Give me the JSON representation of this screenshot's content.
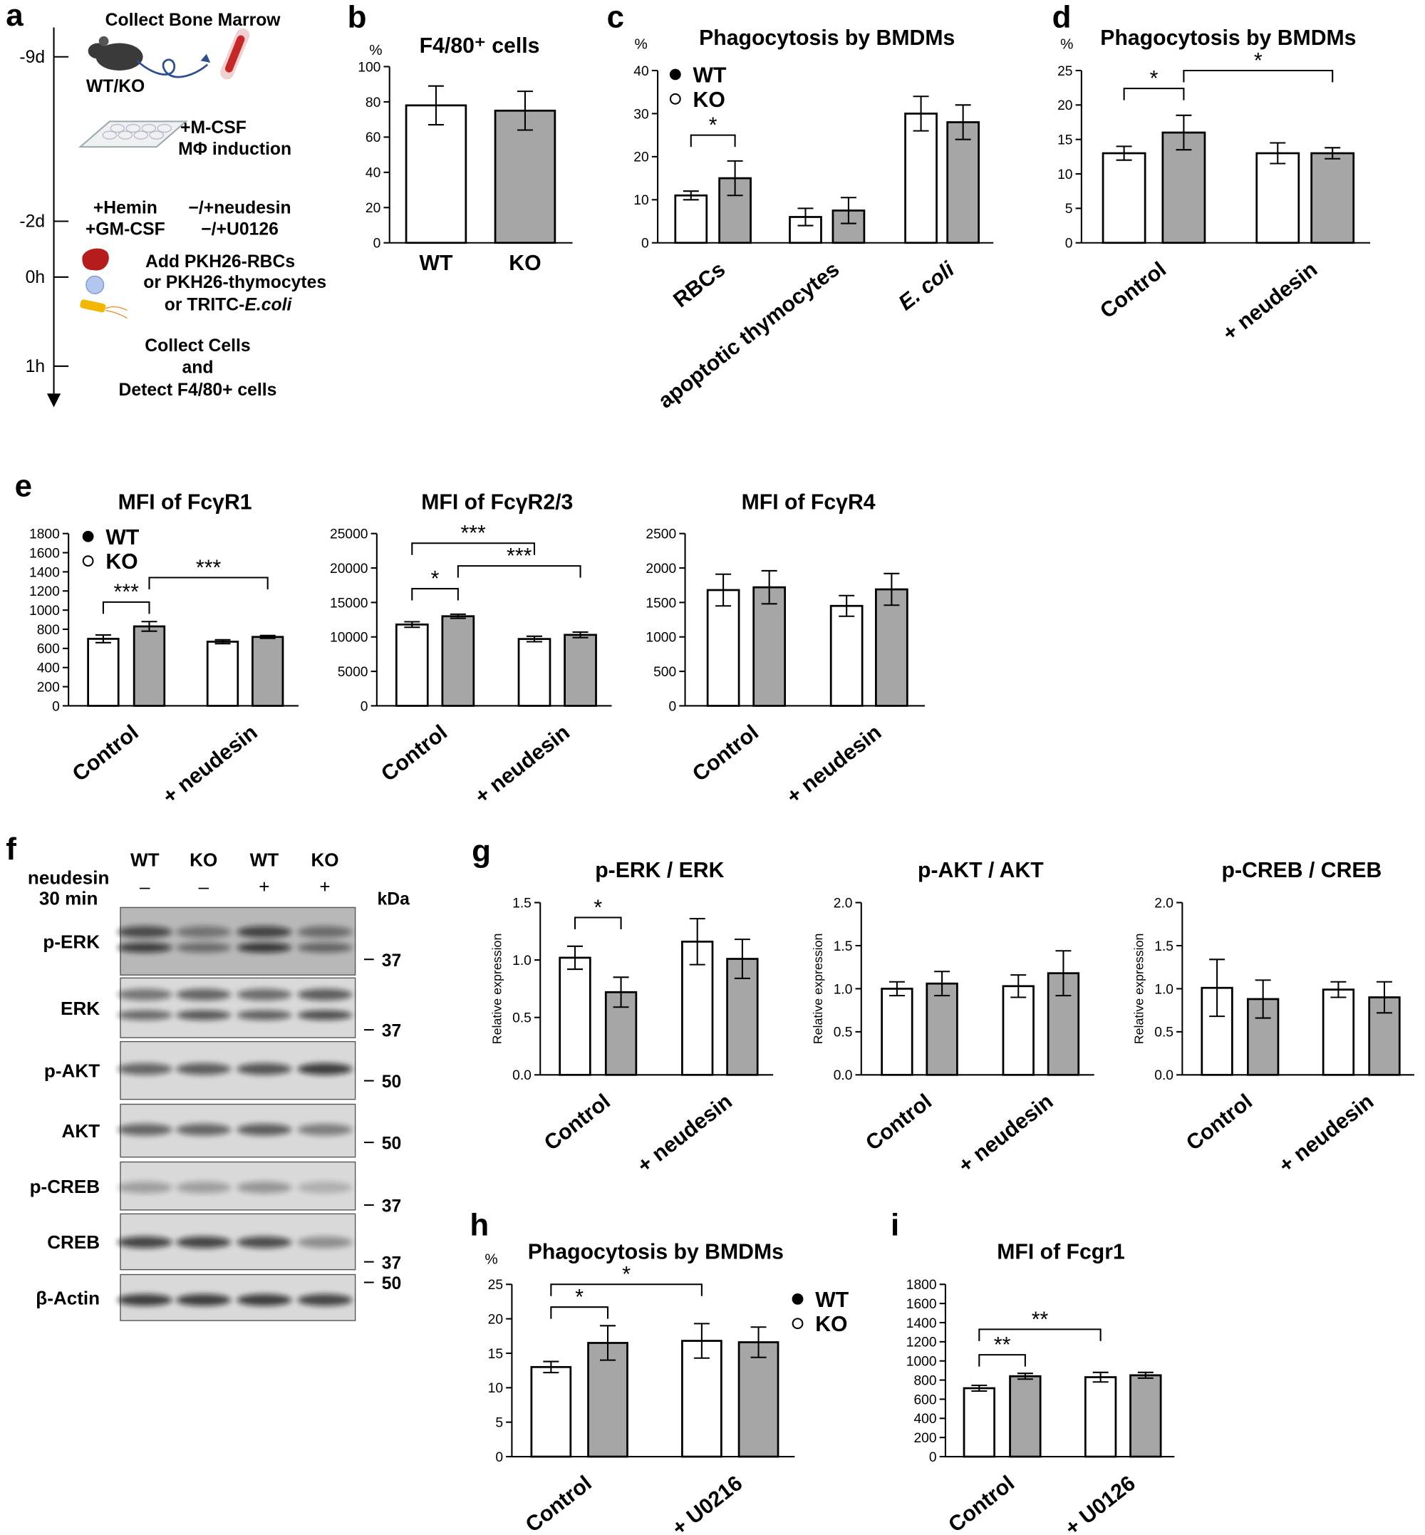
{
  "schematic": {
    "panel": "a",
    "times": [
      "-9d",
      "-2d",
      "0h",
      "1h"
    ],
    "collect": "Collect Bone Marrow",
    "genotype": "WT/KO",
    "culture": [
      "+M-CSF",
      "MΦ induction"
    ],
    "treatment_left": [
      "+Hemin",
      "+GM-CSF"
    ],
    "treatment_right": [
      "−/+neudesin",
      "−/+U0126"
    ],
    "add": [
      "Add PKH26-RBCs",
      "or PKH26-thymocytes",
      "or TRITC-"
    ],
    "add_italic": "E.coli",
    "detect": [
      "Collect Cells",
      "and",
      "Detect F4/80+ cells"
    ]
  },
  "blot": {
    "panel": "f",
    "lanes": [
      "WT",
      "KO",
      "WT",
      "KO"
    ],
    "treatment": [
      "neudesin",
      "30 min"
    ],
    "signs": [
      "–",
      "–",
      "+",
      "+"
    ],
    "unit": "kDa",
    "rows": [
      {
        "label": "p-ERK",
        "marker": "37"
      },
      {
        "label": "ERK",
        "marker": "37"
      },
      {
        "label": "p-AKT",
        "marker": "50"
      },
      {
        "label": "AKT",
        "marker": "50"
      },
      {
        "label": "p-CREB",
        "marker": "37"
      },
      {
        "label": "CREB",
        "marker": "37"
      },
      {
        "label": "β-Actin",
        "marker": "50"
      }
    ]
  },
  "chart_data": [
    {
      "type": "bar",
      "panel": "b",
      "title": "F4/80⁺ cells",
      "ylabel": "%",
      "categories": [
        "WT",
        "KO"
      ],
      "values": [
        78,
        75
      ],
      "errors": [
        11,
        11
      ],
      "colors": [
        "#ffffff",
        "#a6a6a6"
      ],
      "ylim": [
        0,
        100
      ],
      "yticks": [
        0,
        20,
        40,
        60,
        80,
        100
      ]
    },
    {
      "type": "bar",
      "panel": "c",
      "title": "Phagocytosis by BMDMs",
      "ylabel": "%",
      "categories": [
        "RBCs",
        "apoptotic thymocytes",
        "E. coli"
      ],
      "category_italic": [
        false,
        false,
        true
      ],
      "series": [
        {
          "name": "WT",
          "color": "#ffffff",
          "marker": "filled",
          "values": [
            11,
            6,
            30
          ],
          "errors": [
            1,
            2,
            4
          ]
        },
        {
          "name": "KO",
          "color": "#a6a6a6",
          "marker": "open",
          "values": [
            15,
            7.5,
            28
          ],
          "errors": [
            4,
            3,
            4
          ]
        }
      ],
      "legend": "upper left",
      "ylim": [
        0,
        40
      ],
      "yticks": [
        0,
        10,
        20,
        30,
        40
      ],
      "annotations": [
        {
          "text": "*",
          "from": [
            0,
            0
          ],
          "to": [
            0,
            1
          ],
          "y": 25
        }
      ]
    },
    {
      "type": "bar",
      "panel": "d",
      "title": "Phagocytosis by BMDMs",
      "ylabel": "%",
      "categories": [
        "Control",
        "+ neudesin"
      ],
      "series": [
        {
          "name": "WT",
          "color": "#ffffff",
          "values": [
            13,
            13
          ],
          "errors": [
            1,
            1.5
          ]
        },
        {
          "name": "KO",
          "color": "#a6a6a6",
          "values": [
            16,
            13
          ],
          "errors": [
            2.5,
            0.8
          ]
        }
      ],
      "ylim": [
        0,
        25
      ],
      "yticks": [
        0,
        5,
        10,
        15,
        20,
        25
      ],
      "annotations": [
        {
          "text": "*",
          "from": [
            0,
            0
          ],
          "to": [
            0,
            1
          ],
          "y": 22.4
        },
        {
          "text": "*",
          "from": [
            0,
            1
          ],
          "to": [
            1,
            1
          ],
          "y": 25
        }
      ]
    },
    {
      "type": "bar",
      "panel": "e",
      "title": "MFI of FcγR1",
      "categories": [
        "Control",
        "+ neudesin"
      ],
      "series": [
        {
          "name": "WT",
          "color": "#ffffff",
          "marker": "filled",
          "values": [
            700,
            670
          ],
          "errors": [
            40,
            20
          ]
        },
        {
          "name": "KO",
          "color": "#a6a6a6",
          "marker": "open",
          "values": [
            830,
            720
          ],
          "errors": [
            50,
            15
          ]
        }
      ],
      "legend": "upper left",
      "ylim": [
        0,
        1800
      ],
      "yticks": [
        0,
        200,
        400,
        600,
        800,
        1000,
        1200,
        1400,
        1600,
        1800
      ],
      "annotations": [
        {
          "text": "***",
          "from": [
            0,
            0
          ],
          "to": [
            0,
            1
          ],
          "y": 1084
        },
        {
          "text": "***",
          "from": [
            0,
            1
          ],
          "to": [
            1,
            1
          ],
          "y": 1340
        }
      ]
    },
    {
      "type": "bar",
      "title": "MFI of FcγR2/3",
      "categories": [
        "Control",
        "+ neudesin"
      ],
      "series": [
        {
          "name": "WT",
          "color": "#ffffff",
          "values": [
            11800,
            9700
          ],
          "errors": [
            400,
            400
          ]
        },
        {
          "name": "KO",
          "color": "#a6a6a6",
          "values": [
            13000,
            10300
          ],
          "errors": [
            300,
            400
          ]
        }
      ],
      "ylim": [
        0,
        25000
      ],
      "yticks": [
        0,
        5000,
        10000,
        15000,
        20000,
        25000
      ],
      "annotations": [
        {
          "text": "*",
          "from": [
            0,
            0
          ],
          "to": [
            0,
            1
          ],
          "y": 17000
        },
        {
          "text": "***",
          "from": [
            0,
            1
          ],
          "to": [
            1,
            1
          ],
          "y": 20300
        },
        {
          "text": "***",
          "from": [
            0,
            0
          ],
          "to": [
            1,
            0
          ],
          "y": 23600
        }
      ]
    },
    {
      "type": "bar",
      "title": "MFI of FcγR4",
      "categories": [
        "Control",
        "+ neudesin"
      ],
      "series": [
        {
          "name": "WT",
          "color": "#ffffff",
          "values": [
            1680,
            1450
          ],
          "errors": [
            230,
            150
          ]
        },
        {
          "name": "KO",
          "color": "#a6a6a6",
          "values": [
            1720,
            1690
          ],
          "errors": [
            240,
            230
          ]
        }
      ],
      "ylim": [
        0,
        2500
      ],
      "yticks": [
        0,
        500,
        1000,
        1500,
        2000,
        2500
      ]
    },
    {
      "type": "bar",
      "panel": "g",
      "title": "p-ERK / ERK",
      "ylabel": "Relative expression",
      "categories": [
        "Control",
        "+ neudesin"
      ],
      "series": [
        {
          "name": "WT",
          "color": "#ffffff",
          "values": [
            1.02,
            1.16
          ],
          "errors": [
            0.1,
            0.2
          ]
        },
        {
          "name": "KO",
          "color": "#a6a6a6",
          "values": [
            0.72,
            1.01
          ],
          "errors": [
            0.13,
            0.17
          ]
        }
      ],
      "ylim": [
        0,
        1.5
      ],
      "yticks": [
        {
          "value": 0,
          "label": "0.0"
        },
        0.5,
        {
          "value": 1,
          "label": "1.0"
        },
        1.5
      ],
      "annotations": [
        {
          "text": "*",
          "from": [
            0,
            0
          ],
          "to": [
            0,
            1
          ],
          "y": 1.37
        }
      ]
    },
    {
      "type": "bar",
      "title": "p-AKT / AKT",
      "ylabel": "Relative expression",
      "categories": [
        "Control",
        "+ neudesin"
      ],
      "series": [
        {
          "name": "WT",
          "color": "#ffffff",
          "values": [
            1.0,
            1.03
          ],
          "errors": [
            0.08,
            0.13
          ]
        },
        {
          "name": "KO",
          "color": "#a6a6a6",
          "values": [
            1.06,
            1.18
          ],
          "errors": [
            0.14,
            0.26
          ]
        }
      ],
      "ylim": [
        0,
        2
      ],
      "yticks": [
        {
          "value": 0,
          "label": "0.0"
        },
        0.5,
        {
          "value": 1,
          "label": "1.0"
        },
        1.5,
        {
          "value": 2,
          "label": "2.0"
        }
      ]
    },
    {
      "type": "bar",
      "title": "p-CREB / CREB",
      "ylabel": "Relative expression",
      "categories": [
        "Control",
        "+ neudesin"
      ],
      "series": [
        {
          "name": "WT",
          "color": "#ffffff",
          "values": [
            1.01,
            0.99
          ],
          "errors": [
            0.33,
            0.09
          ]
        },
        {
          "name": "KO",
          "color": "#a6a6a6",
          "values": [
            0.88,
            0.9
          ],
          "errors": [
            0.22,
            0.18
          ]
        }
      ],
      "ylim": [
        0,
        2
      ],
      "yticks": [
        {
          "value": 0,
          "label": "0.0"
        },
        0.5,
        {
          "value": 1,
          "label": "1.0"
        },
        1.5,
        {
          "value": 2,
          "label": "2.0"
        }
      ]
    },
    {
      "type": "bar",
      "panel": "h",
      "title": "Phagocytosis by BMDMs",
      "ylabel": "%",
      "categories": [
        "Control",
        "+ U0216"
      ],
      "series": [
        {
          "name": "WT",
          "color": "#ffffff",
          "marker": "filled",
          "values": [
            13,
            16.8
          ],
          "errors": [
            0.8,
            2.5
          ]
        },
        {
          "name": "KO",
          "color": "#a6a6a6",
          "marker": "open",
          "values": [
            16.5,
            16.6
          ],
          "errors": [
            2.5,
            2.2
          ]
        }
      ],
      "legend": "upper right",
      "ylim": [
        0,
        25
      ],
      "yticks": [
        0,
        5,
        10,
        15,
        20,
        25
      ],
      "annotations": [
        {
          "text": "*",
          "from": [
            0,
            0
          ],
          "to": [
            0,
            1
          ],
          "y": 21.7
        },
        {
          "text": "*",
          "from": [
            0,
            0
          ],
          "to": [
            1,
            0
          ],
          "y": 25
        }
      ]
    },
    {
      "type": "bar",
      "panel": "i",
      "title": "MFI of Fcgr1",
      "categories": [
        "Control",
        "+ U0126"
      ],
      "series": [
        {
          "name": "WT",
          "color": "#ffffff",
          "values": [
            715,
            830
          ],
          "errors": [
            30,
            50
          ]
        },
        {
          "name": "KO",
          "color": "#a6a6a6",
          "values": [
            840,
            850
          ],
          "errors": [
            30,
            30
          ]
        }
      ],
      "ylim": [
        0,
        1800
      ],
      "yticks": [
        0,
        200,
        400,
        600,
        800,
        1000,
        1200,
        1400,
        1600,
        1800
      ],
      "annotations": [
        {
          "text": "**",
          "from": [
            0,
            0
          ],
          "to": [
            0,
            1
          ],
          "y": 1064
        },
        {
          "text": "**",
          "from": [
            0,
            0
          ],
          "to": [
            1,
            0
          ],
          "y": 1330
        }
      ]
    }
  ]
}
